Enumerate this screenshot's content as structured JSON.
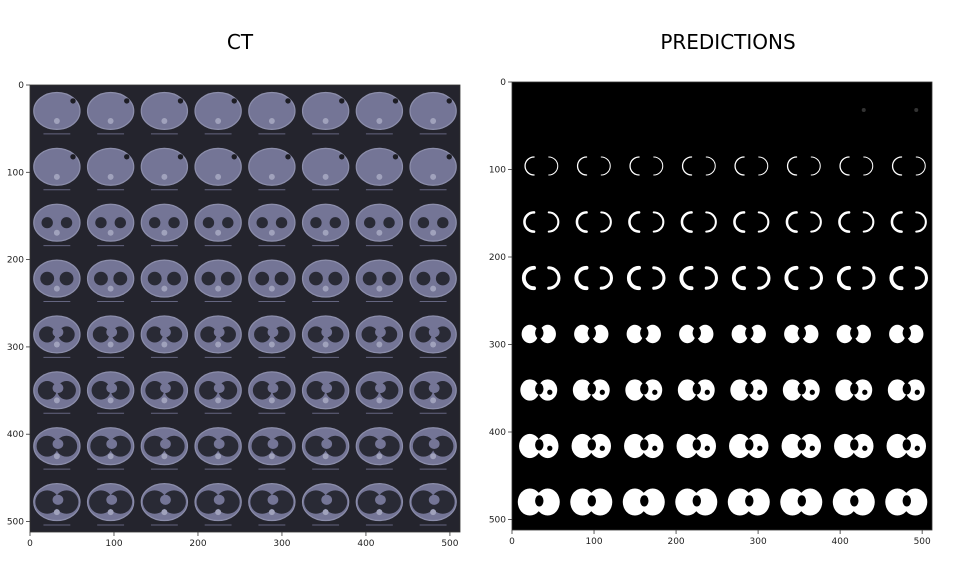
{
  "panels": [
    {
      "title": "CT",
      "x_ticks": [
        "0",
        "100",
        "200",
        "300",
        "400",
        "500"
      ],
      "y_ticks": [
        "0",
        "100",
        "200",
        "300",
        "400",
        "500"
      ],
      "grid": {
        "rows": 8,
        "cols": 8
      },
      "colors": {
        "background": "#16161f",
        "body": "#6b6c8f",
        "body_edge": "#8587a6",
        "lung": "#1b1c28"
      }
    },
    {
      "title": "PREDICTIONS",
      "x_ticks": [
        "0",
        "100",
        "200",
        "300",
        "400",
        "500"
      ],
      "y_ticks": [
        "0",
        "100",
        "200",
        "300",
        "400",
        "500"
      ],
      "grid": {
        "rows": 8,
        "cols": 8
      },
      "colors": {
        "background": "#000000",
        "mask": "#ffffff"
      }
    }
  ]
}
